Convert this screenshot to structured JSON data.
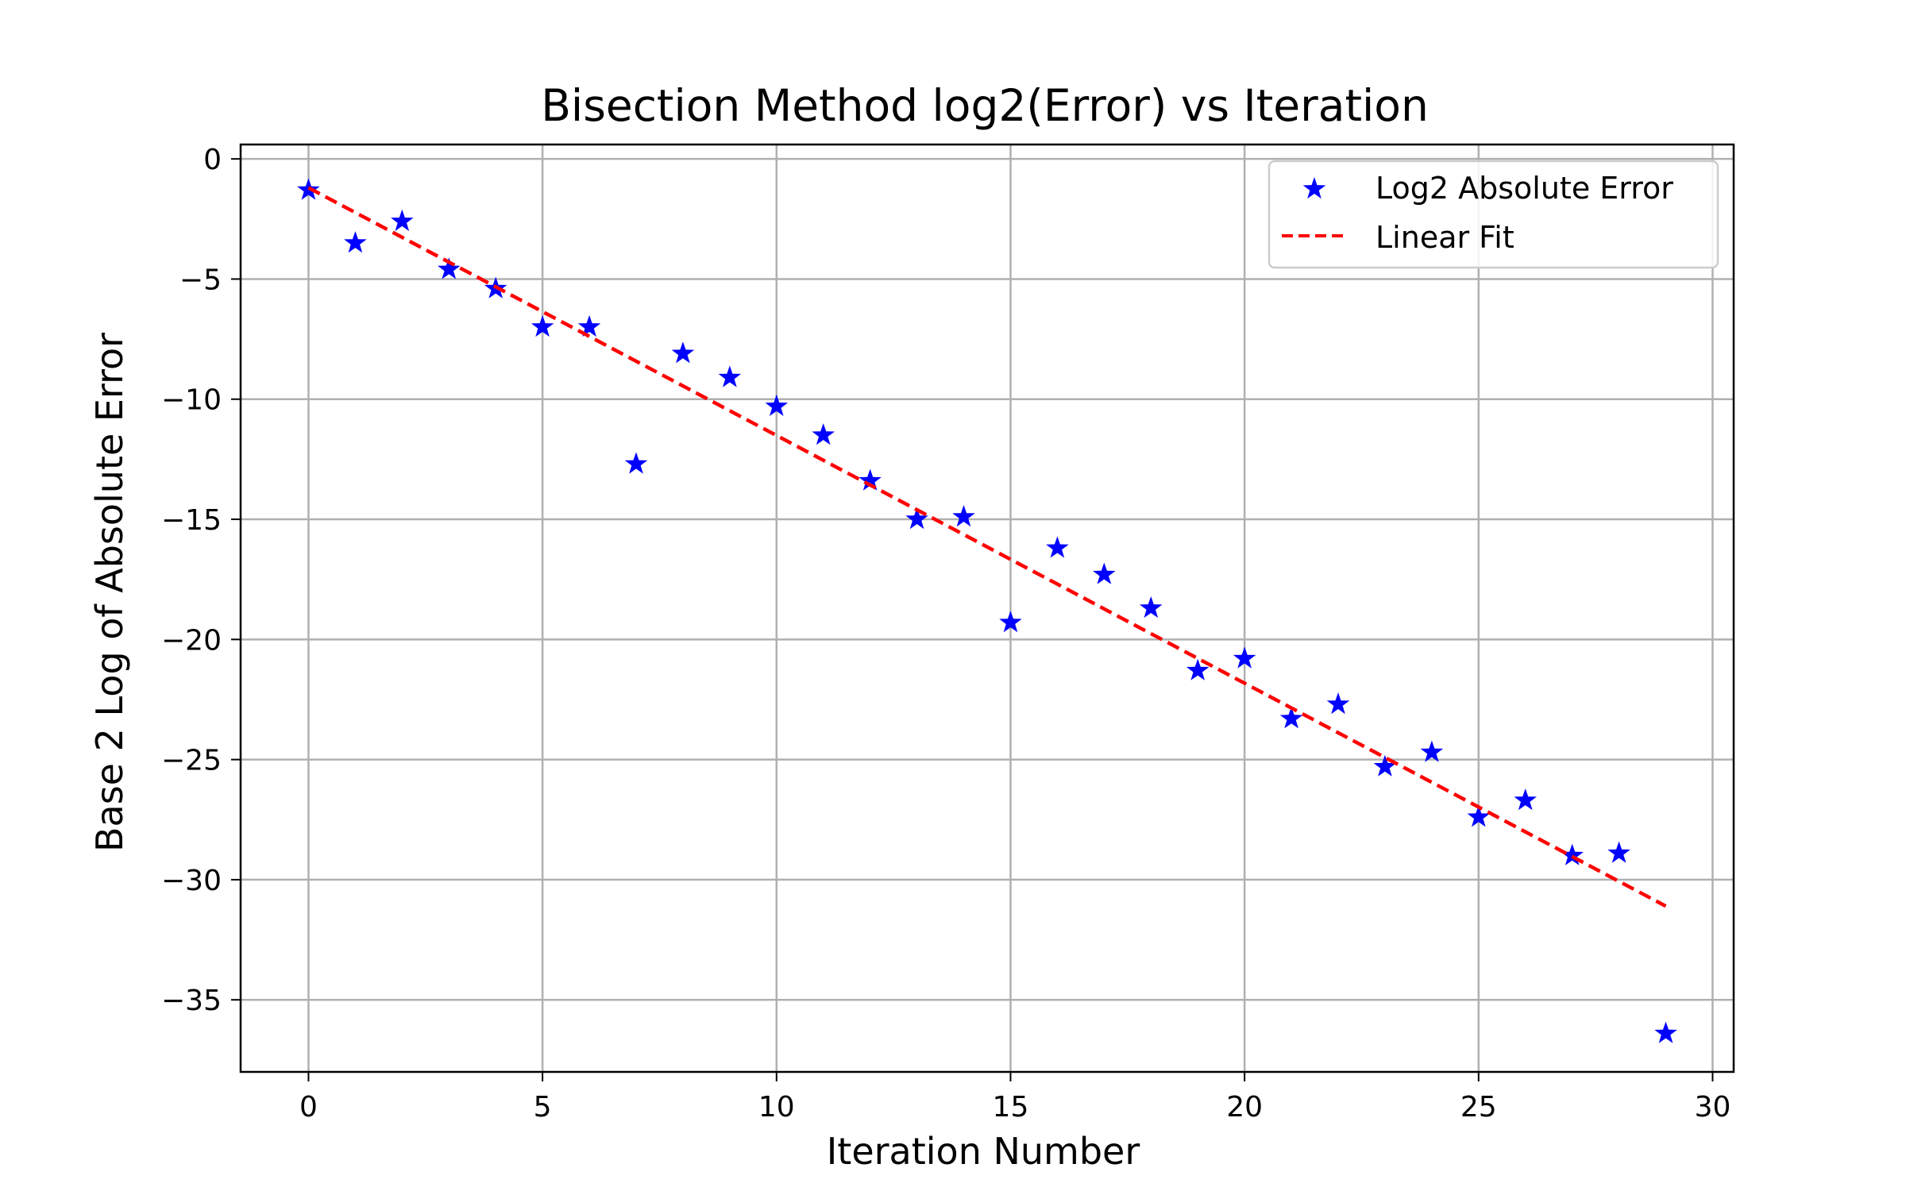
{
  "chart_data": {
    "type": "scatter",
    "title": "Bisection Method log2(Error) vs Iteration",
    "xlabel": "Iteration Number",
    "ylabel": "Base 2 Log of Absolute Error",
    "xlim": [
      -1.45,
      30.45
    ],
    "ylim": [
      -38.0,
      0.6
    ],
    "xticks": [
      0,
      5,
      10,
      15,
      20,
      25,
      30
    ],
    "yticks": [
      0,
      -5,
      -10,
      -15,
      -20,
      -25,
      -30,
      -35
    ],
    "grid": true,
    "legend_position": "top-right",
    "series": [
      {
        "name": "Log2 Absolute Error",
        "kind": "scatter",
        "marker": "star",
        "color": "#0000ff",
        "x": [
          0,
          1,
          2,
          3,
          4,
          5,
          6,
          7,
          8,
          9,
          10,
          11,
          12,
          13,
          14,
          15,
          16,
          17,
          18,
          19,
          20,
          21,
          22,
          23,
          24,
          25,
          26,
          27,
          28,
          29
        ],
        "y": [
          -1.3,
          -3.5,
          -2.6,
          -4.6,
          -5.4,
          -7.0,
          -7.0,
          -12.7,
          -8.1,
          -9.1,
          -10.3,
          -11.5,
          -13.4,
          -15.0,
          -14.9,
          -19.3,
          -16.2,
          -17.3,
          -18.7,
          -21.3,
          -20.8,
          -23.3,
          -22.7,
          -25.3,
          -24.7,
          -27.4,
          -26.7,
          -29.0,
          -28.9,
          -36.4
        ]
      },
      {
        "name": "Linear Fit",
        "kind": "line",
        "style": "dashed",
        "color": "#ff0000",
        "x": [
          0,
          29
        ],
        "y": [
          -1.2,
          -31.1
        ]
      }
    ]
  }
}
